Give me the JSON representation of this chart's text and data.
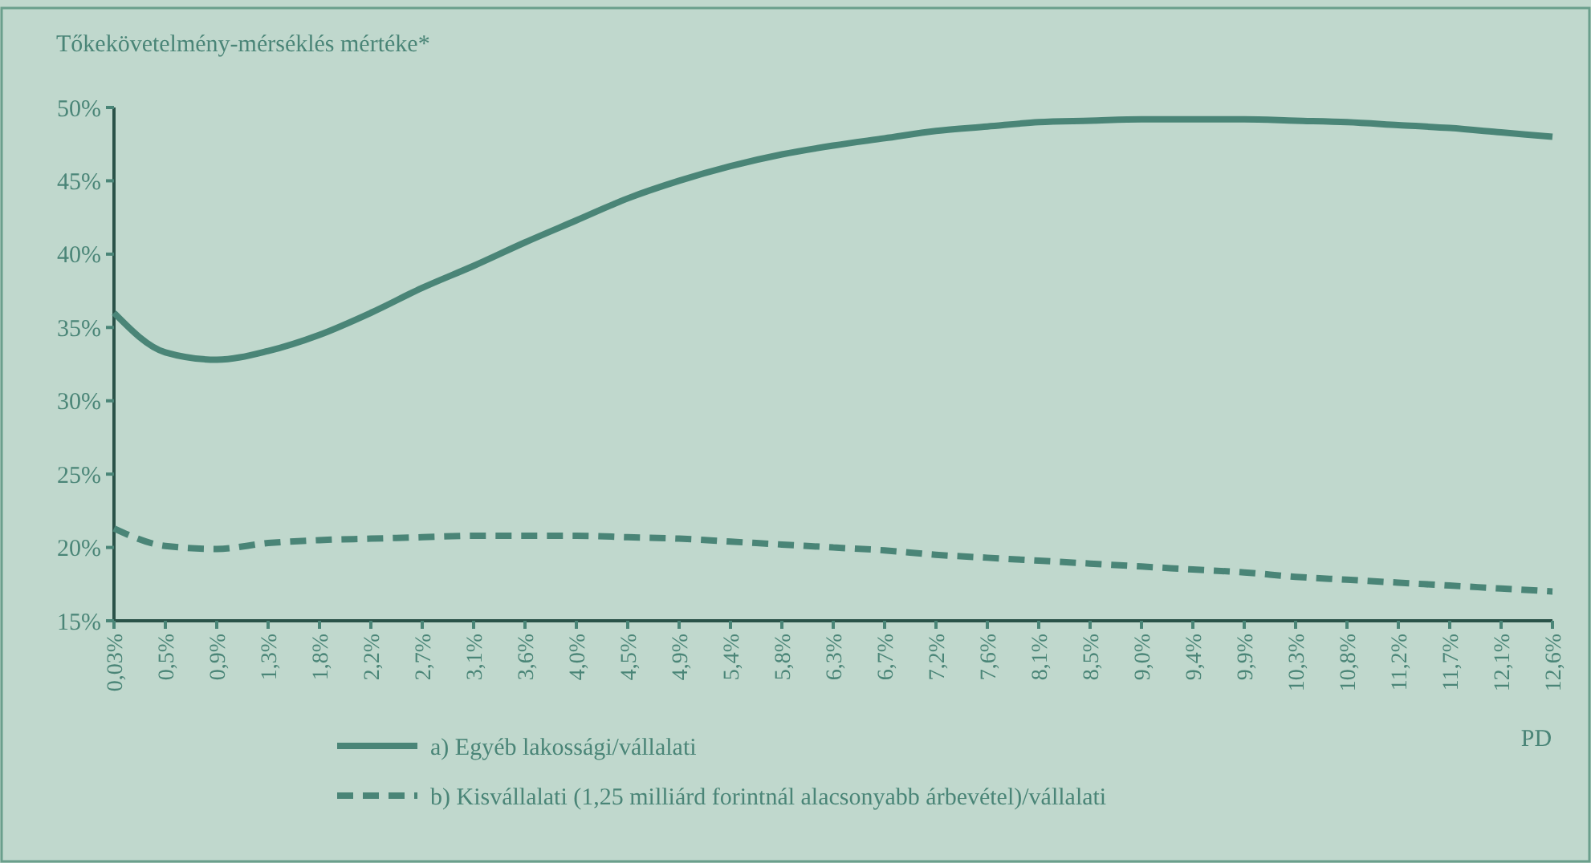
{
  "chart_data": {
    "type": "line",
    "ylabel": "Tőkekövetelmény-mérséklés mértéke*",
    "xlabel": "PD",
    "categories": [
      "0,03%",
      "0,5%",
      "0,9%",
      "1,3%",
      "1,8%",
      "2,2%",
      "2,7%",
      "3,1%",
      "3,6%",
      "4,0%",
      "4,5%",
      "4,9%",
      "5,4%",
      "5,8%",
      "6,3%",
      "6,7%",
      "7,2%",
      "7,6%",
      "8,1%",
      "8,5%",
      "9,0%",
      "9,4%",
      "9,9%",
      "10,3%",
      "10,8%",
      "11,2%",
      "11,7%",
      "12,1%",
      "12,6%"
    ],
    "series": [
      {
        "name": "a) Egyéb lakossági/vállalati",
        "color": "#4a8577",
        "line_style": "solid",
        "values": [
          36,
          33.3,
          32.8,
          33.4,
          34.5,
          36,
          37.7,
          39.2,
          40.8,
          42.3,
          43.8,
          45,
          46,
          46.8,
          47.4,
          47.9,
          48.4,
          48.7,
          49,
          49.1,
          49.2,
          49.2,
          49.2,
          49.1,
          49,
          48.8,
          48.6,
          48.3,
          48
        ]
      },
      {
        "name": "b) Kisvállalati (1,25 milliárd forintnál alacsonyabb árbevétel)/vállalati",
        "color": "#4a8577",
        "line_style": "dashed",
        "values": [
          21.3,
          20.1,
          19.9,
          20.3,
          20.5,
          20.6,
          20.7,
          20.8,
          20.8,
          20.8,
          20.7,
          20.6,
          20.4,
          20.2,
          20,
          19.8,
          19.5,
          19.3,
          19.1,
          18.9,
          18.7,
          18.5,
          18.3,
          18,
          17.8,
          17.6,
          17.4,
          17.2,
          17
        ]
      }
    ],
    "ylim": [
      15,
      50
    ],
    "yticks": [
      {
        "value": 15,
        "label": "15%"
      },
      {
        "value": 20,
        "label": "20%"
      },
      {
        "value": 25,
        "label": "25%"
      },
      {
        "value": 30,
        "label": "30%"
      },
      {
        "value": 35,
        "label": "35%"
      },
      {
        "value": 40,
        "label": "40%"
      },
      {
        "value": 45,
        "label": "45%"
      },
      {
        "value": 50,
        "label": "50%"
      }
    ],
    "grid": false,
    "legend": "bottom",
    "marker": "none"
  }
}
